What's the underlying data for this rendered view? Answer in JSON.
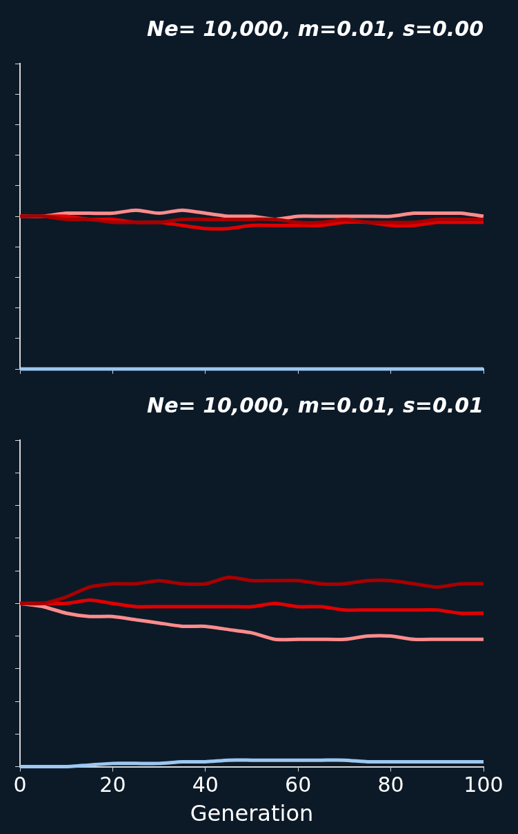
{
  "chart_data": [
    {
      "type": "line",
      "title": "Ne= 10,000, m=0.01, s=0.00",
      "x": [
        0,
        5,
        10,
        15,
        20,
        25,
        30,
        35,
        40,
        45,
        50,
        55,
        60,
        65,
        70,
        75,
        80,
        85,
        90,
        95,
        100
      ],
      "series": [
        {
          "color": "#a80000",
          "values": [
            0.5,
            0.5,
            0.49,
            0.49,
            0.48,
            0.48,
            0.48,
            0.49,
            0.49,
            0.49,
            0.49,
            0.49,
            0.48,
            0.48,
            0.49,
            0.48,
            0.48,
            0.48,
            0.49,
            0.49,
            0.49
          ]
        },
        {
          "color": "#e00000",
          "values": [
            0.5,
            0.5,
            0.5,
            0.49,
            0.49,
            0.48,
            0.48,
            0.47,
            0.46,
            0.46,
            0.47,
            0.47,
            0.47,
            0.47,
            0.48,
            0.48,
            0.47,
            0.47,
            0.48,
            0.48,
            0.48
          ]
        },
        {
          "color": "#ff8c8c",
          "values": [
            0.5,
            0.5,
            0.51,
            0.51,
            0.51,
            0.52,
            0.51,
            0.52,
            0.51,
            0.5,
            0.5,
            0.49,
            0.5,
            0.5,
            0.5,
            0.5,
            0.5,
            0.51,
            0.51,
            0.51,
            0.5
          ]
        },
        {
          "color": "#9cc8f2",
          "values": [
            0,
            0,
            0,
            0,
            0,
            0,
            0,
            0,
            0,
            0,
            0,
            0,
            0,
            0,
            0,
            0,
            0,
            0,
            0,
            0,
            0
          ]
        }
      ],
      "xlim": [
        0,
        100
      ],
      "xticks": [
        0,
        20,
        40,
        60,
        80,
        100
      ],
      "ylim": [
        0,
        1
      ],
      "yticks": [
        0,
        0.1,
        0.2,
        0.3,
        0.4,
        0.5,
        0.6,
        0.7,
        0.8,
        0.9,
        1
      ],
      "grid": false,
      "tick_labels": false
    },
    {
      "type": "line",
      "title": "Ne= 10,000, m=0.01, s=0.01",
      "x_label": "Generation",
      "x": [
        0,
        5,
        10,
        15,
        20,
        25,
        30,
        35,
        40,
        45,
        50,
        55,
        60,
        65,
        70,
        75,
        80,
        85,
        90,
        95,
        100
      ],
      "series": [
        {
          "color": "#a80000",
          "values": [
            0.5,
            0.5,
            0.52,
            0.55,
            0.56,
            0.56,
            0.57,
            0.56,
            0.56,
            0.58,
            0.57,
            0.57,
            0.57,
            0.56,
            0.56,
            0.57,
            0.57,
            0.56,
            0.55,
            0.56,
            0.56
          ]
        },
        {
          "color": "#e00000",
          "values": [
            0.5,
            0.5,
            0.5,
            0.51,
            0.5,
            0.49,
            0.49,
            0.49,
            0.49,
            0.49,
            0.49,
            0.5,
            0.49,
            0.49,
            0.48,
            0.48,
            0.48,
            0.48,
            0.48,
            0.47,
            0.47
          ]
        },
        {
          "color": "#ff8c8c",
          "values": [
            0.5,
            0.49,
            0.47,
            0.46,
            0.46,
            0.45,
            0.44,
            0.43,
            0.43,
            0.42,
            0.41,
            0.39,
            0.39,
            0.39,
            0.39,
            0.4,
            0.4,
            0.39,
            0.39,
            0.39,
            0.39
          ]
        },
        {
          "color": "#9cc8f2",
          "values": [
            0,
            0,
            0,
            0.005,
            0.01,
            0.01,
            0.01,
            0.015,
            0.015,
            0.02,
            0.02,
            0.02,
            0.02,
            0.02,
            0.02,
            0.015,
            0.015,
            0.015,
            0.015,
            0.015,
            0.015
          ]
        }
      ],
      "xlim": [
        0,
        100
      ],
      "xticks": [
        0,
        20,
        40,
        60,
        80,
        100
      ],
      "ylim": [
        0,
        1
      ],
      "yticks": [
        0,
        0.1,
        0.2,
        0.3,
        0.4,
        0.5,
        0.6,
        0.7,
        0.8,
        0.9,
        1
      ],
      "grid": false,
      "tick_labels": "x"
    }
  ]
}
